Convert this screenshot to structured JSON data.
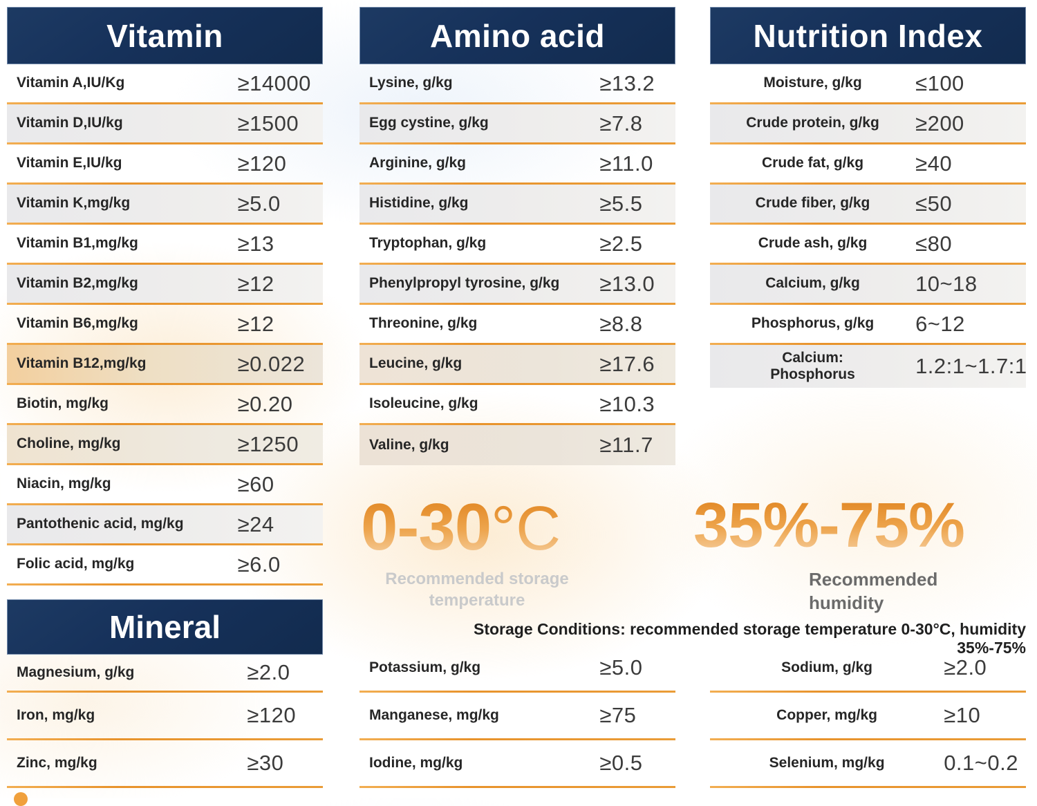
{
  "colors": {
    "header_navy": "#16315a",
    "accent_orange": "#e8932c",
    "value_text": "#3b3b3b",
    "label_text": "#262626"
  },
  "tables": {
    "vitamin": {
      "title": "Vitamin",
      "rows": [
        {
          "label": "Vitamin A,IU/Kg",
          "value": "≥14000"
        },
        {
          "label": "Vitamin D,IU/kg",
          "value": "≥1500"
        },
        {
          "label": "Vitamin E,IU/kg",
          "value": "≥120"
        },
        {
          "label": "Vitamin K,mg/kg",
          "value": "≥5.0"
        },
        {
          "label": "Vitamin B1,mg/kg",
          "value": "≥13"
        },
        {
          "label": "Vitamin B2,mg/kg",
          "value": "≥12"
        },
        {
          "label": "Vitamin B6,mg/kg",
          "value": "≥12"
        },
        {
          "label": "Vitamin B12,mg/kg",
          "value": "≥0.022"
        },
        {
          "label": "Biotin, mg/kg",
          "value": "≥0.20"
        },
        {
          "label": "Choline, mg/kg",
          "value": "≥1250"
        },
        {
          "label": "Niacin, mg/kg",
          "value": "≥60"
        },
        {
          "label": "Pantothenic acid, mg/kg",
          "value": "≥24"
        },
        {
          "label": "Folic acid, mg/kg",
          "value": "≥6.0"
        }
      ]
    },
    "amino_acid": {
      "title": "Amino acid",
      "rows": [
        {
          "label": "Lysine, g/kg",
          "value": "≥13.2"
        },
        {
          "label": "Egg cystine, g/kg",
          "value": "≥7.8"
        },
        {
          "label": "Arginine, g/kg",
          "value": "≥11.0"
        },
        {
          "label": "Histidine, g/kg",
          "value": "≥5.5"
        },
        {
          "label": "Tryptophan, g/kg",
          "value": "≥2.5"
        },
        {
          "label": "Phenylpropyl tyrosine, g/kg",
          "value": "≥13.0"
        },
        {
          "label": "Threonine, g/kg",
          "value": "≥8.8"
        },
        {
          "label": "Leucine, g/kg",
          "value": "≥17.6"
        },
        {
          "label": "Isoleucine, g/kg",
          "value": "≥10.3"
        },
        {
          "label": "Valine, g/kg",
          "value": "≥11.7"
        }
      ]
    },
    "nutrition_index": {
      "title": "Nutrition Index",
      "rows": [
        {
          "label": "Moisture, g/kg",
          "value": "≤100"
        },
        {
          "label": "Crude protein, g/kg",
          "value": "≥200"
        },
        {
          "label": "Crude fat, g/kg",
          "value": "≥40"
        },
        {
          "label": "Crude fiber, g/kg",
          "value": "≤50"
        },
        {
          "label": "Crude ash, g/kg",
          "value": "≤80"
        },
        {
          "label": "Calcium, g/kg",
          "value": "10~18"
        },
        {
          "label": "Phosphorus, g/kg",
          "value": "6~12"
        },
        {
          "label": "Calcium:\nPhosphorus",
          "value": "1.2:1~1.7:1"
        }
      ]
    },
    "mineral_left": {
      "title": "Mineral",
      "rows": [
        {
          "label": "Magnesium, g/kg",
          "value": "≥2.0"
        },
        {
          "label": "Iron, mg/kg",
          "value": "≥120"
        },
        {
          "label": "Zinc, mg/kg",
          "value": "≥30"
        }
      ]
    },
    "mineral_mid": {
      "rows": [
        {
          "label": "Potassium, g/kg",
          "value": "≥5.0"
        },
        {
          "label": "Manganese, mg/kg",
          "value": "≥75"
        },
        {
          "label": "Iodine, mg/kg",
          "value": "≥0.5"
        }
      ]
    },
    "mineral_right": {
      "rows": [
        {
          "label": "Sodium, g/kg",
          "value": "≥2.0"
        },
        {
          "label": "Copper, mg/kg",
          "value": "≥10"
        },
        {
          "label": "Selenium, mg/kg",
          "value": "0.1~0.2"
        }
      ]
    }
  },
  "storage": {
    "temperature_value": "0-30",
    "temperature_unit": "°C",
    "temperature_caption": "Recommended storage temperature",
    "humidity_value": "35%-75%",
    "humidity_caption": "Recommended humidity",
    "conditions": "Storage Conditions: recommended storage temperature 0-30°C, humidity 35%-75%"
  }
}
